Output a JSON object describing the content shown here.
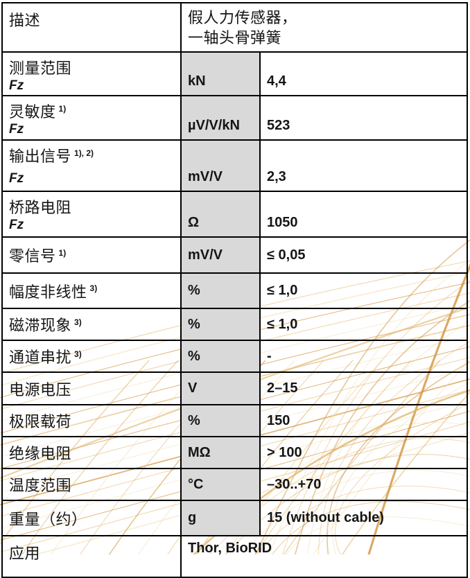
{
  "colors": {
    "border": "#000000",
    "unit_column_bg": "#d9d9d9",
    "text": "#151515",
    "decor_gold_light": "#f0d9a8",
    "decor_gold_mid": "#e2b267",
    "decor_gold_deep": "#d2953e"
  },
  "table": {
    "rows": [
      {
        "label": "描述",
        "value_line1": "假人力传感器，",
        "value_line2": "一轴头骨弹簧"
      },
      {
        "label": "测量范围",
        "sup": "",
        "sub": "Fz",
        "unit": "kN",
        "value": "4,4"
      },
      {
        "label": "灵敏度",
        "sup": "1)",
        "sub": "Fz",
        "unit": "µV/V/kN",
        "value": "523"
      },
      {
        "label": "输出信号",
        "sup": "1), 2)",
        "sub": "Fz",
        "unit": "mV/V",
        "value": "2,3"
      },
      {
        "label": "桥路电阻",
        "sup": "",
        "sub": "Fz",
        "unit": "Ω",
        "value": "1050"
      },
      {
        "label": "零信号",
        "sup": "1)",
        "unit": "mV/V",
        "value": "≤ 0,05"
      },
      {
        "label": "幅度非线性",
        "sup": "3)",
        "unit": "%",
        "value": "≤ 1,0"
      },
      {
        "label": "磁滞现象",
        "sup": "3)",
        "unit": "%",
        "value": "≤ 1,0"
      },
      {
        "label": "通道串扰",
        "sup": "3)",
        "unit": "%",
        "value": "-"
      },
      {
        "label": "电源电压",
        "sup": "",
        "unit": "V",
        "value": "2–15"
      },
      {
        "label": "极限载荷",
        "sup": "",
        "unit": "%",
        "value": "150"
      },
      {
        "label": "绝缘电阻",
        "sup": "",
        "unit": "MΩ",
        "value": "> 100"
      },
      {
        "label": "温度范围",
        "sup": "",
        "unit": "°C",
        "value": "–30..+70"
      },
      {
        "label": "重量（约）",
        "sup": "",
        "unit": "g",
        "value": "15 (without cable)"
      },
      {
        "label": "应用",
        "value": "Thor, BioRID"
      }
    ]
  }
}
